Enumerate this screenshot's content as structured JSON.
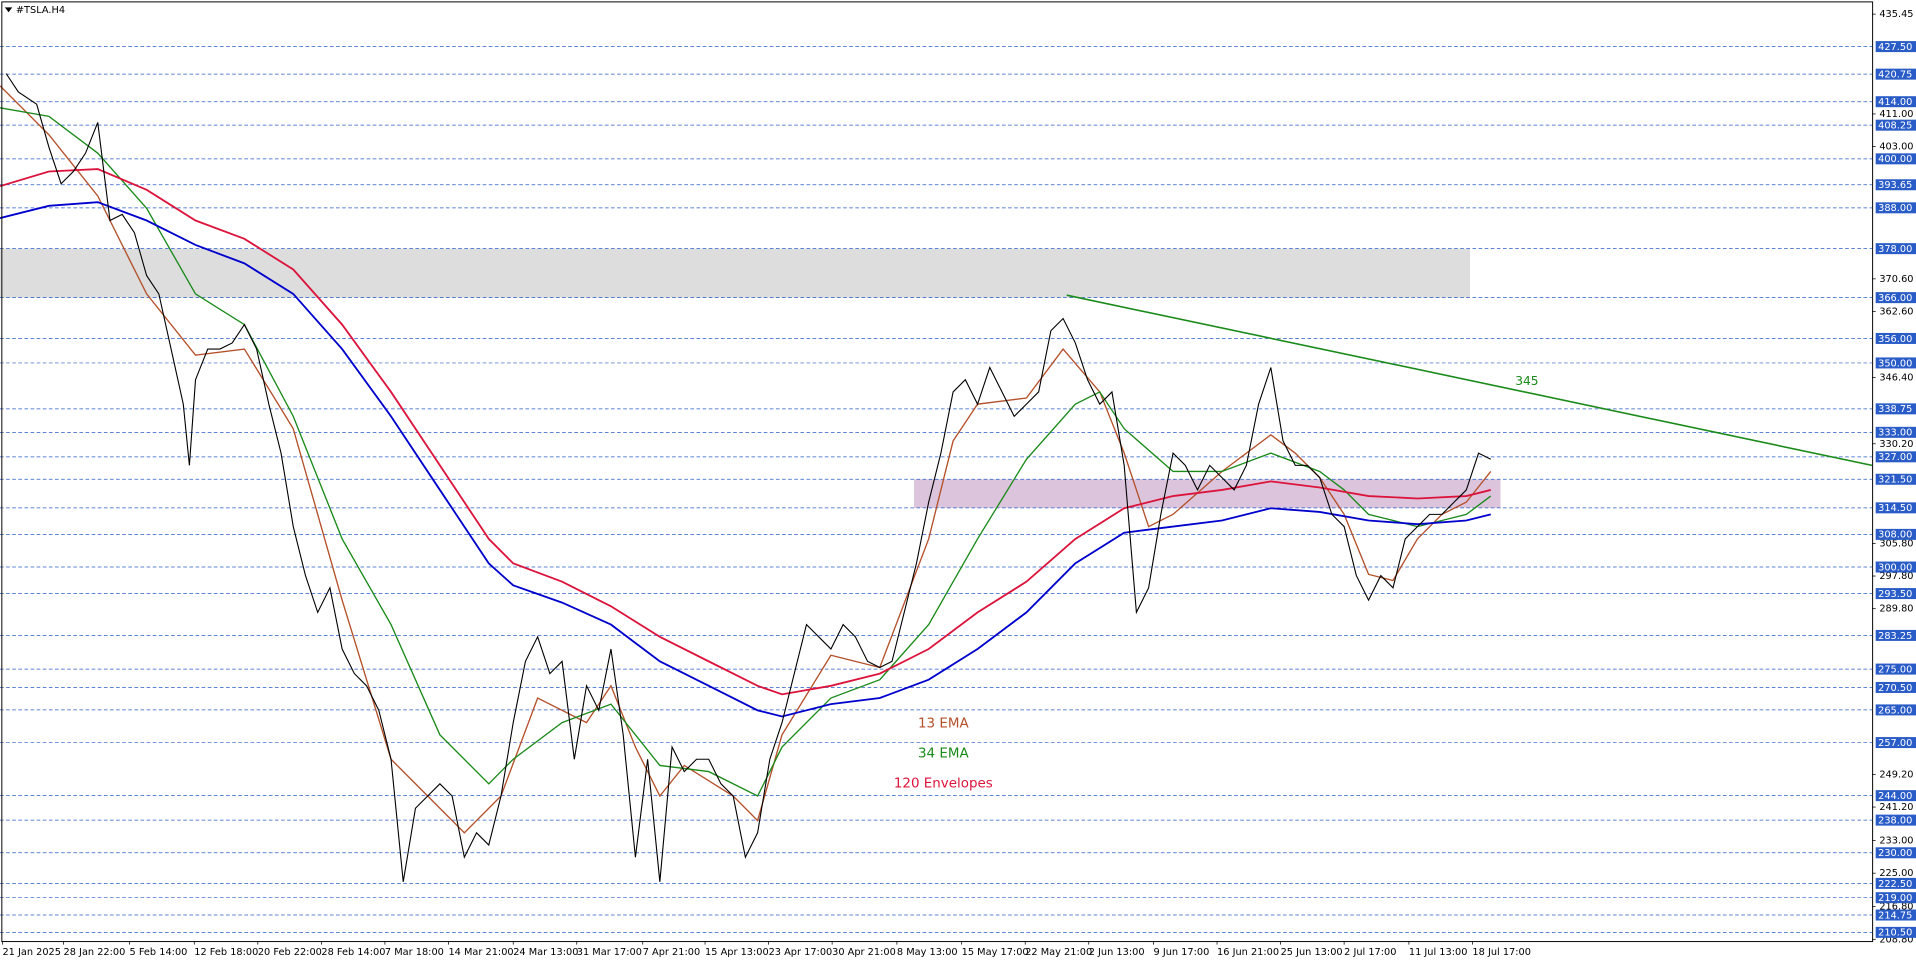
{
  "chart_data": {
    "type": "line",
    "title": "#TSLA.H4",
    "xlim": [
      0,
      766
    ],
    "ylim": [
      208.4,
      438.9
    ],
    "xticks": [
      {
        "value": 1,
        "label": "21 Jan 2025"
      },
      {
        "value": 26,
        "label": "28 Jan 22:00"
      },
      {
        "value": 53,
        "label": "5 Feb 14:00"
      },
      {
        "value": 79.5,
        "label": "12 Feb 18:00"
      },
      {
        "value": 105.5,
        "label": "20 Feb 22:00"
      },
      {
        "value": 131.5,
        "label": "28 Feb 14:00"
      },
      {
        "value": 157.5,
        "label": "7 Mar 18:00"
      },
      {
        "value": 183.5,
        "label": "14 Mar 21:00"
      },
      {
        "value": 210,
        "label": "24 Mar 13:00"
      },
      {
        "value": 236,
        "label": "31 Mar 17:00"
      },
      {
        "value": 263,
        "label": "7 Apr 21:00"
      },
      {
        "value": 288.5,
        "label": "15 Apr 13:00"
      },
      {
        "value": 314.5,
        "label": "23 Apr 17:00"
      },
      {
        "value": 340.5,
        "label": "30 Apr 21:00"
      },
      {
        "value": 367,
        "label": "8 May 13:00"
      },
      {
        "value": 393.5,
        "label": "15 May 17:00"
      },
      {
        "value": 419.5,
        "label": "22 May 21:00"
      },
      {
        "value": 445.5,
        "label": "2 Jun 13:00"
      },
      {
        "value": 472,
        "label": "9 Jun 17:00"
      },
      {
        "value": 498,
        "label": "16 Jun 21:00"
      },
      {
        "value": 524,
        "label": "25 Jun 13:00"
      },
      {
        "value": 550,
        "label": "2 Jul 17:00"
      },
      {
        "value": 576.5,
        "label": "11 Jul 13:00"
      },
      {
        "value": 602.5,
        "label": "18 Jul 17:00"
      }
    ],
    "yticks": [
      435.45,
      {
        "value": 411,
        "label": "411.00"
      },
      {
        "value": 403,
        "label": "403.00"
      },
      {
        "value": 370.6,
        "label": "370.60"
      },
      {
        "value": 362.6,
        "label": "362.60"
      },
      {
        "value": 346.4,
        "label": "346.40"
      },
      {
        "value": 330.2,
        "label": "330.20"
      },
      {
        "value": 305.8,
        "label": "305.80"
      },
      {
        "value": 297.8,
        "label": "297.80"
      },
      {
        "value": 289.8,
        "label": "289.80"
      },
      {
        "value": 249.2,
        "label": "249.20"
      },
      {
        "value": 241.2,
        "label": "241.20"
      },
      {
        "value": 233,
        "label": "233.00"
      },
      {
        "value": 225,
        "label": "225.00"
      },
      {
        "value": 216.8,
        "label": "216.80"
      },
      {
        "value": 208.8,
        "label": "208.80"
      }
    ],
    "levels": [
      {
        "value": 427.5,
        "label": "427.50"
      },
      {
        "value": 420.75,
        "label": "420.75"
      },
      {
        "value": 414,
        "label": "414.00"
      },
      {
        "value": 408.25,
        "label": "408.25"
      },
      {
        "value": 400,
        "label": "400.00"
      },
      {
        "value": 393.65,
        "label": "393.65"
      },
      {
        "value": 388,
        "label": "388.00"
      },
      {
        "value": 378,
        "label": "378.00"
      },
      {
        "value": 366,
        "label": "366.00"
      },
      {
        "value": 356,
        "label": "356.00"
      },
      {
        "value": 350,
        "label": "350.00"
      },
      {
        "value": 338.75,
        "label": "338.75"
      },
      {
        "value": 333,
        "label": "333.00"
      },
      {
        "value": 327,
        "label": "327.00"
      },
      {
        "value": 321.5,
        "label": "321.50"
      },
      {
        "value": 314.5,
        "label": "314.50"
      },
      {
        "value": 308,
        "label": "308.00"
      },
      {
        "value": 300,
        "label": "300.00"
      },
      {
        "value": 293.5,
        "label": "293.50"
      },
      {
        "value": 283.25,
        "label": "283.25"
      },
      {
        "value": 275,
        "label": "275.00"
      },
      {
        "value": 270.5,
        "label": "270.50"
      },
      {
        "value": 265,
        "label": "265.00"
      },
      {
        "value": 257,
        "label": "257.00"
      },
      {
        "value": 244,
        "label": "244.00"
      },
      {
        "value": 238,
        "label": "238.00"
      },
      {
        "value": 230,
        "label": "230.00"
      },
      {
        "value": 222.5,
        "label": "222.50"
      },
      {
        "value": 219,
        "label": "219.00"
      },
      {
        "value": 214.75,
        "label": "214.75"
      },
      {
        "value": 210.5,
        "label": "210.50"
      }
    ],
    "level_color": "#2a5cc8",
    "zones": [
      {
        "xlim": [
          0,
          601.5
        ],
        "ylim": [
          366,
          378
        ],
        "color": "#d9d9d9"
      },
      {
        "xlim": [
          374,
          614
        ],
        "ylim": [
          314.5,
          321.5
        ],
        "color": "#d8bfd8"
      }
    ],
    "price": {
      "color": "#000000",
      "x": [
        2.5,
        7.5,
        15,
        20,
        25,
        30,
        35,
        40,
        45,
        50,
        55,
        60,
        65,
        70,
        75,
        77.5,
        80,
        85,
        90,
        95,
        100,
        105,
        110,
        115,
        120,
        125,
        130,
        135,
        140,
        145,
        150,
        155,
        160,
        165,
        170,
        175,
        180,
        185,
        190,
        195,
        200,
        205,
        210,
        215,
        220,
        225,
        230,
        235,
        240,
        245,
        250,
        255,
        260,
        265,
        270,
        275,
        280,
        285,
        290,
        295,
        300,
        305,
        310,
        315,
        320,
        325,
        330,
        335,
        340,
        345,
        350,
        355,
        360,
        365,
        370,
        375,
        380,
        385,
        390,
        395,
        400,
        405,
        410,
        415,
        420,
        425,
        430,
        435,
        440,
        445,
        450,
        455,
        460,
        462.5,
        465,
        470,
        475,
        480,
        485,
        490,
        495,
        500,
        505,
        510,
        515,
        520,
        525,
        530,
        535,
        540,
        545,
        550,
        555,
        560,
        565,
        570,
        575,
        580,
        585,
        590,
        595,
        600,
        605,
        610
      ],
      "values": [
        420.9,
        416.4,
        413.4,
        402.9,
        393.9,
        396.9,
        401.4,
        408.9,
        384.9,
        386.4,
        381.9,
        371.4,
        366.9,
        353.4,
        339.9,
        324.9,
        345.9,
        353.4,
        353.4,
        354.9,
        359.4,
        353.4,
        339.9,
        327.9,
        309.9,
        297.9,
        288.9,
        294.9,
        279.9,
        273.9,
        270.9,
        264.9,
        252.9,
        222.9,
        240.9,
        243.9,
        246.9,
        243.9,
        228.9,
        234.9,
        231.9,
        243.9,
        261.9,
        276.9,
        282.9,
        273.9,
        276.9,
        252.9,
        270.9,
        264.9,
        279.9,
        258.9,
        228.9,
        252.9,
        222.9,
        255.9,
        249.9,
        252.9,
        252.9,
        246.9,
        243.9,
        228.9,
        234.9,
        252.9,
        261.9,
        273.9,
        285.9,
        282.9,
        279.9,
        285.9,
        282.9,
        276.9,
        275.4,
        276.9,
        288.9,
        300.9,
        315.9,
        327.9,
        342.9,
        345.9,
        339.9,
        348.9,
        342.9,
        336.9,
        339.9,
        342.9,
        357.9,
        360.9,
        354.9,
        345.9,
        339.9,
        342.9,
        324.9,
        306.9,
        288.9,
        294.9,
        312.9,
        327.9,
        324.9,
        318.9,
        324.9,
        321.9,
        318.9,
        324.9,
        339.9,
        348.9,
        330.9,
        324.9,
        324.9,
        321.9,
        312.9,
        309.9,
        297.9,
        291.9,
        297.9,
        294.9,
        306.9,
        309.9,
        312.9,
        312.9,
        315.9,
        318.9,
        327.9,
        326.4
      ]
    },
    "series": [
      {
        "name": "13 EMA",
        "color": "#b4502a",
        "x": [
          0,
          20,
          40,
          60,
          80,
          100,
          120,
          140,
          160,
          175,
          190,
          205,
          220,
          240,
          250,
          260,
          270,
          280,
          300,
          310,
          320,
          340,
          360,
          380,
          390,
          400,
          420,
          435,
          450,
          460,
          470,
          480,
          500,
          520,
          530,
          540,
          550,
          560,
          570,
          580,
          590,
          600,
          610
        ],
        "values": [
          417.9,
          405.9,
          390.9,
          366.9,
          351.9,
          353.4,
          333.9,
          291.9,
          252.9,
          243.9,
          234.9,
          243.9,
          267.9,
          261.9,
          270.9,
          255.9,
          243.9,
          251.4,
          243.9,
          237.9,
          258.9,
          278.4,
          275.4,
          306.9,
          330.9,
          339.9,
          341.4,
          353.4,
          342.9,
          327.9,
          309.9,
          312.9,
          323.4,
          332.4,
          327.9,
          321.9,
          312.9,
          298.2,
          296.7,
          306.9,
          312.9,
          315.9,
          323.4
        ]
      },
      {
        "name": "34 EMA",
        "color": "#1a8a1a",
        "x": [
          0,
          20,
          40,
          60,
          80,
          100,
          120,
          140,
          160,
          180,
          200,
          210,
          230,
          250,
          270,
          290,
          310,
          320,
          340,
          360,
          380,
          400,
          420,
          440,
          450,
          460,
          480,
          500,
          520,
          540,
          550,
          560,
          580,
          600,
          610
        ],
        "values": [
          412.5,
          410.4,
          401.4,
          387.9,
          366.9,
          359.4,
          336.9,
          306.9,
          285.9,
          258.9,
          246.9,
          252.9,
          261.9,
          266.4,
          251.4,
          249.9,
          243.9,
          255.9,
          267.9,
          272.4,
          285.9,
          306.9,
          326.4,
          339.9,
          342.9,
          333.9,
          323.4,
          323.4,
          327.9,
          323.4,
          318.9,
          312.9,
          309.9,
          312.9,
          317.4
        ]
      },
      {
        "name": "120 Envelopes",
        "color": "#dc143c",
        "lower_color": "#0000cd",
        "x": [
          0,
          20,
          40,
          60,
          80,
          100,
          120,
          140,
          160,
          180,
          200,
          210,
          230,
          250,
          270,
          290,
          310,
          320,
          340,
          360,
          380,
          400,
          420,
          440,
          460,
          480,
          500,
          520,
          540,
          560,
          580,
          600,
          610
        ],
        "values": [
          393.3,
          396.9,
          397.5,
          392.4,
          384.9,
          380.4,
          372.9,
          359.4,
          342.9,
          324.9,
          306.9,
          300.9,
          296.4,
          290.4,
          282.9,
          276.9,
          270.9,
          268.8,
          270.9,
          273.9,
          279.9,
          288.9,
          296.4,
          306.9,
          314.4,
          317.4,
          318.9,
          321.0,
          319.5,
          317.4,
          316.8,
          317.4,
          318.9
        ],
        "lower": [
          385.5,
          388.5,
          389.4,
          384.9,
          378.9,
          374.4,
          366.9,
          353.4,
          336.9,
          318.9,
          300.9,
          295.5,
          291.3,
          285.9,
          276.9,
          270.9,
          264.9,
          263.4,
          266.4,
          267.9,
          272.4,
          279.9,
          288.9,
          300.9,
          308.4,
          309.9,
          311.4,
          314.4,
          313.5,
          311.4,
          310.5,
          311.4,
          312.9
        ]
      }
    ],
    "trendline": {
      "x": [
        436.5,
        766
      ],
      "values": [
        366.6,
        324.9
      ],
      "color": "#1a8a1a",
      "label": "345"
    }
  }
}
